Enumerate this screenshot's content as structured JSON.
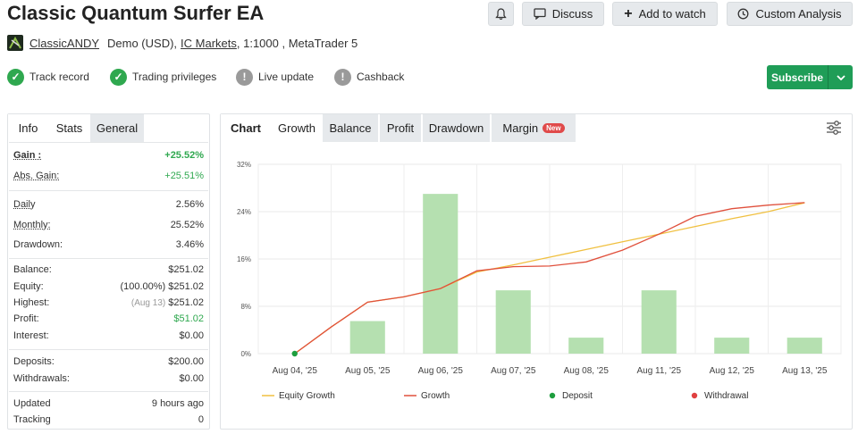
{
  "header": {
    "title": "Classic Quantum Surfer EA",
    "discuss_label": "Discuss",
    "add_watch_label": "Add to watch",
    "custom_analysis_label": "Custom Analysis"
  },
  "author": {
    "name": "ClassicANDY",
    "account_type": "Demo (USD),",
    "broker": "IC Markets",
    "details": ", 1:1000 , MetaTrader 5"
  },
  "badges": [
    {
      "label": "Track record",
      "status": "ok"
    },
    {
      "label": "Trading privileges",
      "status": "ok"
    },
    {
      "label": "Live update",
      "status": "warn"
    },
    {
      "label": "Cashback",
      "status": "warn"
    }
  ],
  "subscribe_label": "Subscribe",
  "left_tabs": [
    "Info",
    "Stats",
    "General"
  ],
  "stats": {
    "gain_label": "Gain :",
    "gain": "+25.52%",
    "abs_gain_label": "Abs. Gain:",
    "abs_gain": "+25.51%",
    "daily_label": "Daily",
    "daily": "2.56%",
    "monthly_label": "Monthly:",
    "monthly": "25.52%",
    "drawdown_label": "Drawdown:",
    "drawdown": "3.46%",
    "balance_label": "Balance:",
    "balance": "$251.02",
    "equity_label": "Equity:",
    "equity_note": "(100.00%)",
    "equity": "$251.02",
    "highest_label": "Highest:",
    "highest_note": "(Aug 13)",
    "highest": "$251.02",
    "profit_label": "Profit:",
    "profit": "$51.02",
    "interest_label": "Interest:",
    "interest": "$0.00",
    "deposits_label": "Deposits:",
    "deposits": "$200.00",
    "withdrawals_label": "Withdrawals:",
    "withdrawals": "$0.00",
    "updated_label": "Updated",
    "updated": "9 hours ago",
    "tracking_label": "Tracking",
    "tracking": "0"
  },
  "chart_tabs": [
    "Chart",
    "Growth",
    "Balance",
    "Profit",
    "Drawdown",
    "Margin"
  ],
  "margin_new_badge": "New",
  "colors": {
    "green": "#2fa84f",
    "bar": "#b5e0b0",
    "equity_line": "#f0c040",
    "growth_line": "#e0503c",
    "deposit": "#1e9e3e",
    "withdrawal": "#e04040"
  },
  "chart_data": {
    "type": "bar",
    "categories": [
      "Aug 04, '25",
      "Aug 05, '25",
      "Aug 06, '25",
      "Aug 07, '25",
      "Aug 08, '25",
      "Aug 11, '25",
      "Aug 12, '25",
      "Aug 13, '25"
    ],
    "y_ticks": [
      "32%",
      "24%",
      "16%",
      "8%",
      "0%"
    ],
    "ylim": [
      0,
      32
    ],
    "grid": true,
    "legend_placement": "bottom",
    "series": [
      {
        "name": "Growth",
        "type": "bar",
        "values": [
          0,
          5.5,
          27,
          10.7,
          2.7,
          10.7,
          2.7,
          2.7
        ]
      },
      {
        "name": "Equity Growth",
        "type": "line",
        "x": [
          0,
          0.5,
          1,
          1.5,
          2,
          2.5,
          3,
          3.5,
          4,
          4.5,
          5,
          5.5,
          6,
          6.5,
          7
        ],
        "values": [
          0,
          4.5,
          8.7,
          9.6,
          11.0,
          13.8,
          15.0,
          16.3,
          17.6,
          18.9,
          20.2,
          21.5,
          22.8,
          24.0,
          25.5
        ]
      },
      {
        "name": "Growth",
        "type": "line",
        "x": [
          0,
          0.5,
          1,
          1.5,
          2,
          2.5,
          3,
          3.5,
          4,
          4.5,
          5,
          5.5,
          6,
          6.5,
          7
        ],
        "values": [
          0,
          4.5,
          8.7,
          9.6,
          11.0,
          14.0,
          14.7,
          14.8,
          15.5,
          17.5,
          20.2,
          23.2,
          24.5,
          25.1,
          25.52
        ]
      }
    ],
    "deposit_points": [
      {
        "x": 0,
        "y": 0
      }
    ],
    "legend": [
      "Equity Growth",
      "Growth",
      "Deposit",
      "Withdrawal"
    ]
  }
}
